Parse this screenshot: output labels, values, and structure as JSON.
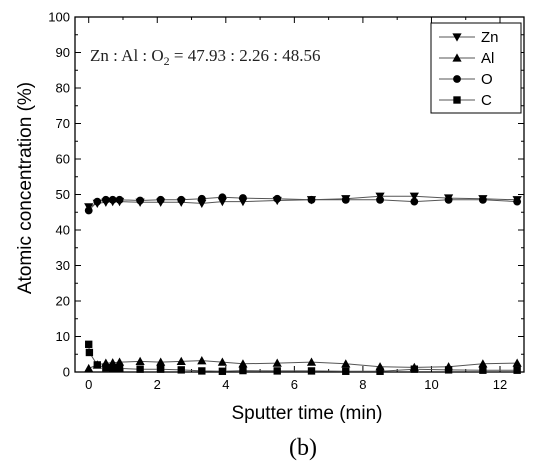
{
  "chart_data": {
    "type": "line",
    "xlabel": "Sputter time (min)",
    "ylabel": "Atomic concentration (%)",
    "xlim": [
      -0.4,
      12.7
    ],
    "ylim": [
      0,
      100
    ],
    "xticks": [
      0,
      2,
      4,
      6,
      8,
      10,
      12
    ],
    "yticks": [
      0,
      10,
      20,
      30,
      40,
      50,
      60,
      70,
      80,
      90,
      100
    ],
    "grid": false,
    "legend_position": "top-right",
    "annotation": {
      "prefix": "Zn : Al : O",
      "subscript": "2",
      "suffix": " = 47.93 : 2.26 : 48.56"
    },
    "panel_label": "(b)",
    "series": [
      {
        "name": "Zn",
        "marker": "triangle-down",
        "x": [
          0,
          0.25,
          0.5,
          0.7,
          0.9,
          1.5,
          2.1,
          2.7,
          3.3,
          3.9,
          4.5,
          5.5,
          6.5,
          7.5,
          8.5,
          9.5,
          10.5,
          11.5,
          12.5
        ],
        "y": [
          46.5,
          47.5,
          47.8,
          48.0,
          48.0,
          47.8,
          47.8,
          47.8,
          47.5,
          48.0,
          48.0,
          48.3,
          48.5,
          48.8,
          49.5,
          49.5,
          49.0,
          48.8,
          48.5
        ]
      },
      {
        "name": "Al",
        "marker": "triangle-up",
        "x": [
          0,
          0.25,
          0.5,
          0.7,
          0.9,
          1.5,
          2.1,
          2.7,
          3.3,
          3.9,
          4.5,
          5.5,
          6.5,
          7.5,
          8.5,
          9.5,
          10.5,
          11.5,
          12.5
        ],
        "y": [
          1.0,
          2.0,
          2.5,
          2.6,
          2.8,
          3.0,
          2.8,
          3.0,
          3.2,
          2.8,
          2.3,
          2.5,
          2.8,
          2.3,
          1.5,
          1.3,
          1.5,
          2.3,
          2.5
        ]
      },
      {
        "name": "O",
        "marker": "circle",
        "x": [
          0,
          0.25,
          0.5,
          0.7,
          0.9,
          1.5,
          2.1,
          2.7,
          3.3,
          3.9,
          4.5,
          5.5,
          6.5,
          7.5,
          8.5,
          9.5,
          10.5,
          11.5,
          12.5
        ],
        "y": [
          45.5,
          48.0,
          48.5,
          48.5,
          48.5,
          48.3,
          48.5,
          48.5,
          48.8,
          49.2,
          49.0,
          48.8,
          48.5,
          48.5,
          48.5,
          48.0,
          48.5,
          48.5,
          48.0
        ]
      },
      {
        "name": "C",
        "marker": "square",
        "x": [
          0,
          0.02,
          0.25,
          0.5,
          0.7,
          0.9,
          1.5,
          2.1,
          2.7,
          3.3,
          3.9,
          4.5,
          5.5,
          6.5,
          7.5,
          8.5,
          9.5,
          10.5,
          11.5,
          12.5
        ],
        "y": [
          7.8,
          5.5,
          2.0,
          1.2,
          1.0,
          1.0,
          0.8,
          0.8,
          0.6,
          0.3,
          0.2,
          0.4,
          0.3,
          0.3,
          0.2,
          0.2,
          0.8,
          0.6,
          0.5,
          0.5
        ]
      }
    ]
  }
}
